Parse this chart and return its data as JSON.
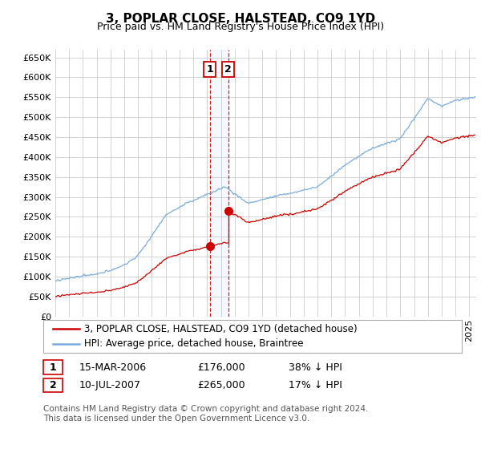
{
  "title": "3, POPLAR CLOSE, HALSTEAD, CO9 1YD",
  "subtitle": "Price paid vs. HM Land Registry's House Price Index (HPI)",
  "ylim": [
    0,
    670000
  ],
  "yticks": [
    0,
    50000,
    100000,
    150000,
    200000,
    250000,
    300000,
    350000,
    400000,
    450000,
    500000,
    550000,
    600000,
    650000
  ],
  "xlim_start": 1995.0,
  "xlim_end": 2025.5,
  "hpi_color": "#7aabdb",
  "price_color": "#cc0000",
  "grid_color": "#cccccc",
  "background_color": "#ffffff",
  "sale1_date": 2006.204,
  "sale1_price": 176000,
  "sale1_label": "1",
  "sale2_date": 2007.526,
  "sale2_price": 265000,
  "sale2_label": "2",
  "legend_line1": "3, POPLAR CLOSE, HALSTEAD, CO9 1YD (detached house)",
  "legend_line2": "HPI: Average price, detached house, Braintree",
  "table_row1_num": "1",
  "table_row1_date": "15-MAR-2006",
  "table_row1_price": "£176,000",
  "table_row1_hpi": "38% ↓ HPI",
  "table_row2_num": "2",
  "table_row2_date": "10-JUL-2007",
  "table_row2_price": "£265,000",
  "table_row2_hpi": "17% ↓ HPI",
  "footer": "Contains HM Land Registry data © Crown copyright and database right 2024.\nThis data is licensed under the Open Government Licence v3.0.",
  "title_fontsize": 11,
  "subtitle_fontsize": 9,
  "tick_fontsize": 8,
  "legend_fontsize": 8.5,
  "table_fontsize": 9,
  "footer_fontsize": 7.5
}
